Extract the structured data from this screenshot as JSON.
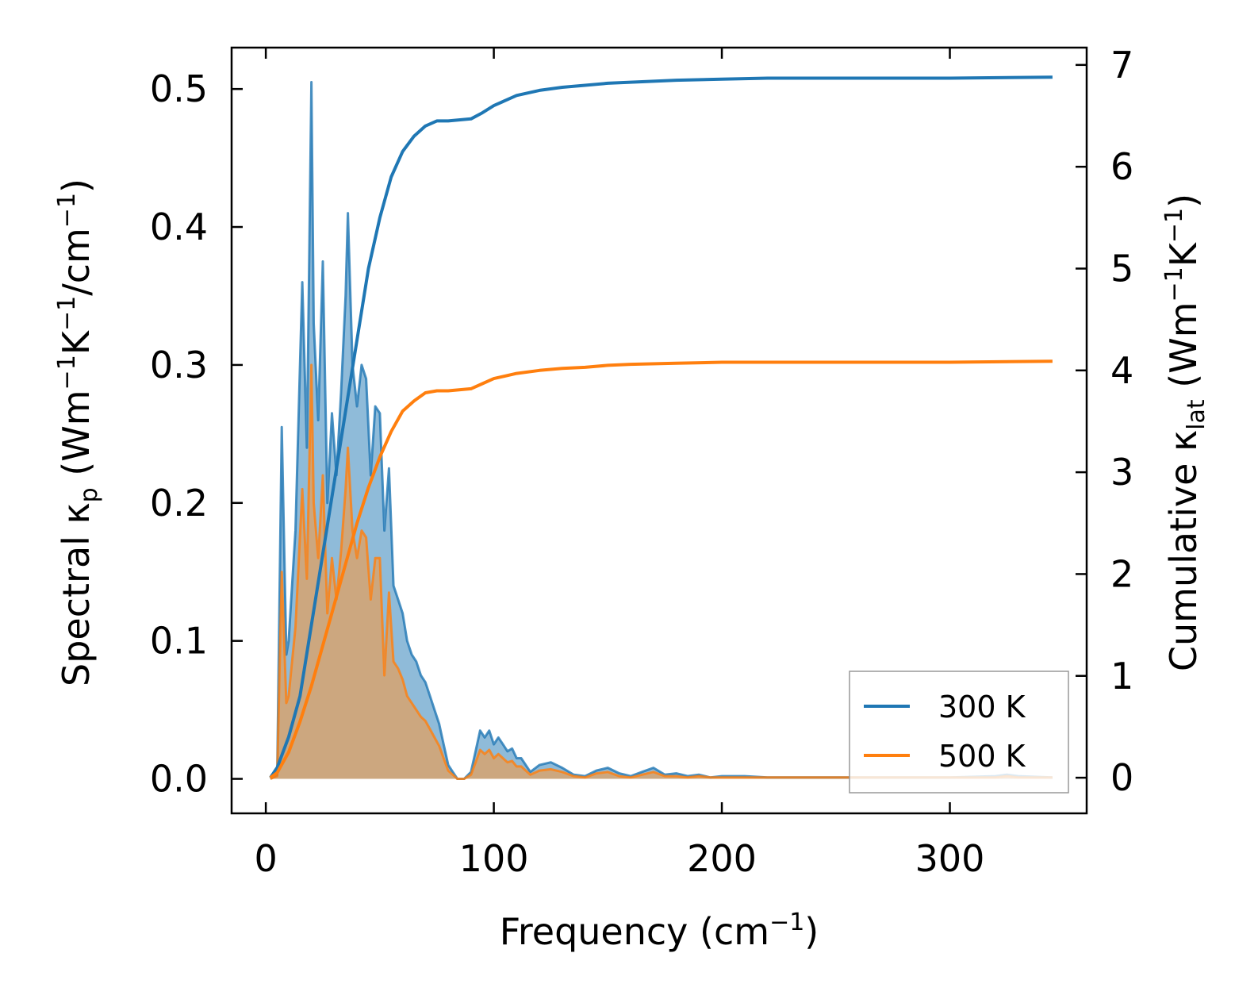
{
  "chart_data": {
    "type": "line",
    "title": "",
    "xlabel": {
      "main": "Frequency (cm",
      "sup": "−1",
      "tail": ")"
    },
    "ylabel_left": {
      "t1": "Spectral κ",
      "sub": "p",
      "t2": " (Wm",
      "sup1": "−1",
      "t3": "K",
      "sup2": "−1",
      "t4": "/cm",
      "sup3": "−1",
      "t5": ")"
    },
    "ylabel_right": {
      "t1": "Cumulative κ",
      "sub": "lat",
      "t2": " (Wm",
      "sup1": "−1",
      "t3": "K",
      "sup2": "−1",
      "t4": ")"
    },
    "xlim": [
      -15,
      360
    ],
    "ylim_left": [
      -0.025,
      0.53
    ],
    "ylim_right": [
      -0.35,
      7.17
    ],
    "x_ticks": [
      0,
      100,
      200,
      300
    ],
    "x_tick_labels": [
      "0",
      "100",
      "200",
      "300"
    ],
    "y_left_ticks": [
      0.0,
      0.1,
      0.2,
      0.3,
      0.4,
      0.5
    ],
    "y_left_tick_labels": [
      "0.0",
      "0.1",
      "0.2",
      "0.3",
      "0.4",
      "0.5"
    ],
    "y_right_ticks": [
      0,
      1,
      2,
      3,
      4,
      5,
      6,
      7
    ],
    "y_right_tick_labels": [
      "0",
      "1",
      "2",
      "3",
      "4",
      "5",
      "6",
      "7"
    ],
    "legend": {
      "position": "lower-right",
      "entries": [
        "300 K",
        "500 K"
      ]
    },
    "colors": {
      "300K": "#1f77b4",
      "500K": "#ff7f0e",
      "fill300": "#1f77b4",
      "fill500": "#d7a36e"
    },
    "series": [
      {
        "name": "300 K",
        "axis": "left",
        "kind": "spectral",
        "x": [
          2,
          5,
          7,
          9,
          10,
          13,
          16,
          18,
          20,
          21,
          23,
          25,
          27,
          29,
          31,
          33,
          35,
          36,
          38,
          40,
          42,
          44,
          46,
          48,
          50,
          52,
          54,
          56,
          58,
          60,
          62,
          64,
          66,
          68,
          70,
          72,
          74,
          76,
          78,
          80,
          82,
          84,
          87,
          90,
          92,
          94,
          96,
          98,
          100,
          102,
          104,
          106,
          108,
          110,
          112,
          116,
          120,
          125,
          130,
          135,
          140,
          145,
          150,
          155,
          160,
          165,
          170,
          175,
          180,
          185,
          190,
          195,
          200,
          210,
          220,
          230,
          260,
          300,
          320,
          325,
          330,
          345
        ],
        "values": [
          0,
          0.003,
          0.255,
          0.09,
          0.1,
          0.18,
          0.36,
          0.24,
          0.505,
          0.33,
          0.26,
          0.375,
          0.2,
          0.265,
          0.22,
          0.28,
          0.35,
          0.41,
          0.3,
          0.27,
          0.3,
          0.29,
          0.22,
          0.27,
          0.265,
          0.18,
          0.225,
          0.14,
          0.13,
          0.12,
          0.1,
          0.09,
          0.085,
          0.075,
          0.07,
          0.06,
          0.05,
          0.04,
          0.025,
          0.01,
          0.005,
          0.0,
          0.0,
          0.005,
          0.02,
          0.035,
          0.03,
          0.035,
          0.025,
          0.03,
          0.025,
          0.02,
          0.022,
          0.015,
          0.015,
          0.005,
          0.01,
          0.012,
          0.008,
          0.003,
          0.002,
          0.006,
          0.008,
          0.004,
          0.002,
          0.005,
          0.008,
          0.003,
          0.004,
          0.002,
          0.003,
          0.001,
          0.002,
          0.002,
          0.001,
          0.001,
          0.001,
          0.001,
          0.002,
          0.003,
          0.002,
          0.001
        ]
      },
      {
        "name": "500 K",
        "axis": "left",
        "kind": "spectral",
        "x": [
          2,
          5,
          7,
          9,
          10,
          13,
          16,
          18,
          20,
          21,
          23,
          25,
          27,
          29,
          31,
          33,
          35,
          36,
          38,
          40,
          42,
          44,
          46,
          48,
          50,
          52,
          54,
          56,
          58,
          60,
          62,
          64,
          66,
          68,
          70,
          72,
          74,
          76,
          78,
          80,
          82,
          84,
          87,
          90,
          92,
          94,
          96,
          98,
          100,
          102,
          104,
          106,
          108,
          110,
          112,
          116,
          120,
          125,
          130,
          135,
          140,
          145,
          150,
          155,
          160,
          165,
          170,
          175,
          180,
          185,
          190,
          195,
          200,
          210,
          220,
          230,
          260,
          300,
          320,
          325,
          330,
          345
        ],
        "values": [
          0,
          0.002,
          0.15,
          0.055,
          0.06,
          0.11,
          0.21,
          0.145,
          0.3,
          0.2,
          0.16,
          0.22,
          0.12,
          0.16,
          0.13,
          0.165,
          0.21,
          0.24,
          0.18,
          0.16,
          0.18,
          0.175,
          0.13,
          0.16,
          0.16,
          0.075,
          0.135,
          0.085,
          0.08,
          0.072,
          0.06,
          0.055,
          0.05,
          0.045,
          0.042,
          0.036,
          0.03,
          0.024,
          0.015,
          0.006,
          0.003,
          0.0,
          0.0,
          0.003,
          0.012,
          0.021,
          0.018,
          0.021,
          0.015,
          0.018,
          0.015,
          0.012,
          0.013,
          0.009,
          0.009,
          0.003,
          0.006,
          0.007,
          0.005,
          0.002,
          0.001,
          0.004,
          0.005,
          0.002,
          0.001,
          0.003,
          0.005,
          0.002,
          0.002,
          0.001,
          0.002,
          0.001,
          0.001,
          0.001,
          0.001,
          0.001,
          0.001,
          0.001,
          0.001,
          0.002,
          0.001,
          0.001
        ]
      },
      {
        "name": "300 K",
        "axis": "right",
        "kind": "cumulative",
        "x": [
          2,
          5,
          10,
          15,
          20,
          25,
          30,
          35,
          40,
          45,
          50,
          55,
          60,
          65,
          70,
          75,
          80,
          90,
          95,
          100,
          110,
          120,
          130,
          140,
          150,
          160,
          180,
          200,
          220,
          250,
          300,
          345
        ],
        "values": [
          0,
          0.1,
          0.4,
          0.8,
          1.5,
          2.2,
          2.9,
          3.6,
          4.3,
          5.0,
          5.5,
          5.9,
          6.15,
          6.3,
          6.4,
          6.45,
          6.45,
          6.47,
          6.53,
          6.6,
          6.7,
          6.75,
          6.78,
          6.8,
          6.82,
          6.83,
          6.85,
          6.86,
          6.87,
          6.87,
          6.87,
          6.88
        ]
      },
      {
        "name": "500 K",
        "axis": "right",
        "kind": "cumulative",
        "x": [
          2,
          5,
          10,
          15,
          20,
          25,
          30,
          35,
          40,
          45,
          50,
          55,
          60,
          65,
          70,
          75,
          80,
          90,
          95,
          100,
          110,
          120,
          130,
          140,
          150,
          160,
          180,
          200,
          220,
          250,
          300,
          345
        ],
        "values": [
          0,
          0.05,
          0.25,
          0.55,
          0.9,
          1.3,
          1.7,
          2.1,
          2.5,
          2.85,
          3.15,
          3.4,
          3.6,
          3.7,
          3.78,
          3.8,
          3.8,
          3.82,
          3.87,
          3.92,
          3.97,
          4.0,
          4.02,
          4.03,
          4.05,
          4.06,
          4.07,
          4.08,
          4.08,
          4.08,
          4.08,
          4.09
        ]
      }
    ]
  }
}
